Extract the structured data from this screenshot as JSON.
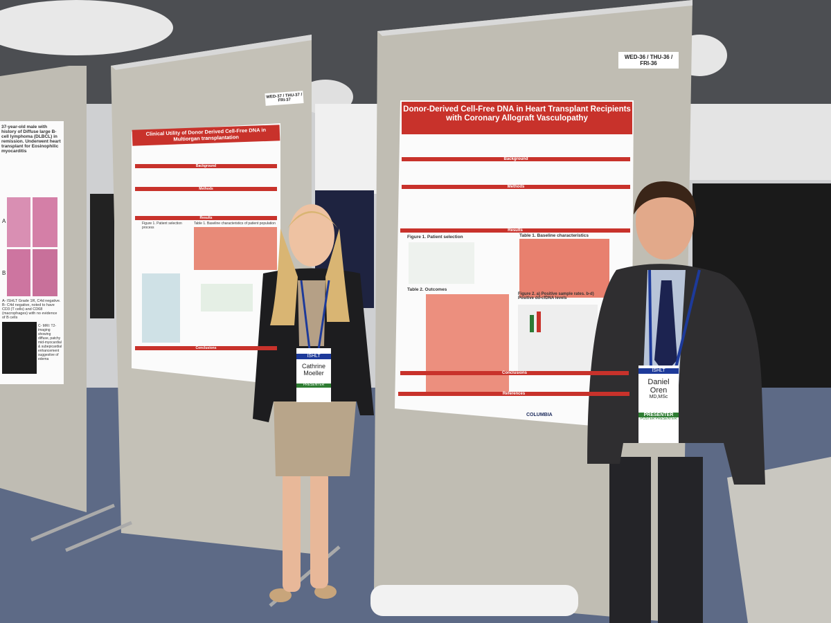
{
  "boards": {
    "middle_label": "WED-37 / THU-37 / FRI-37",
    "right_label": "WED-36 / THU-36 / FRI-36"
  },
  "left_poster": {
    "case_text": "37-year-old male with history of Diffuse large B-cell lymphoma (DLBCL) in remission. Underwent heart transplant for Eosinophilic myocarditis",
    "panel_a": "A",
    "panel_b": "B",
    "note": "A- ISHLT Grade 1R, C4d negative. B- C4d negative, noted to have CD3 (T cells) and CD68 (macrophages) with no evidence of B cells",
    "mri": "C- MRI: T2-imaging showing diffuse, patchy mid-myocardial & subepicardial enhancement suggestive of edema"
  },
  "middle_poster": {
    "title": "Clinical Utility of Donor Derived Cell-Free DNA in Multiorgan transplantation",
    "sections": [
      "Background",
      "Methods",
      "Results",
      "Conclusions"
    ],
    "figure1": "Figure 1. Patient selection process",
    "table1": "Table 1. Baseline characteristics of patient population"
  },
  "right_poster": {
    "title": "Donor-Derived Cell-Free DNA in Heart Transplant Recipients with Coronary Allograft Vasculopathy",
    "sections": [
      "Background",
      "Methods",
      "Results",
      "Conclusions",
      "References"
    ],
    "figure1": "Figure 1. Patient selection",
    "table1": "Table 1. Baseline characteristics",
    "table2": "Table 2. Outcomes",
    "figure2": "Figure 2. a) Positive sample rates. b-d) Positive dd-cfDNA levels",
    "logo": "COLUMBIA"
  },
  "badges": [
    {
      "name": "Cathrine Moeller",
      "role": "PRESENTER"
    },
    {
      "name": "Daniel Oren",
      "credentials": "MD,MSc",
      "role": "PRESENTER",
      "role2": "POSTER PRESENTER"
    }
  ],
  "lanyard": "ISHLT"
}
